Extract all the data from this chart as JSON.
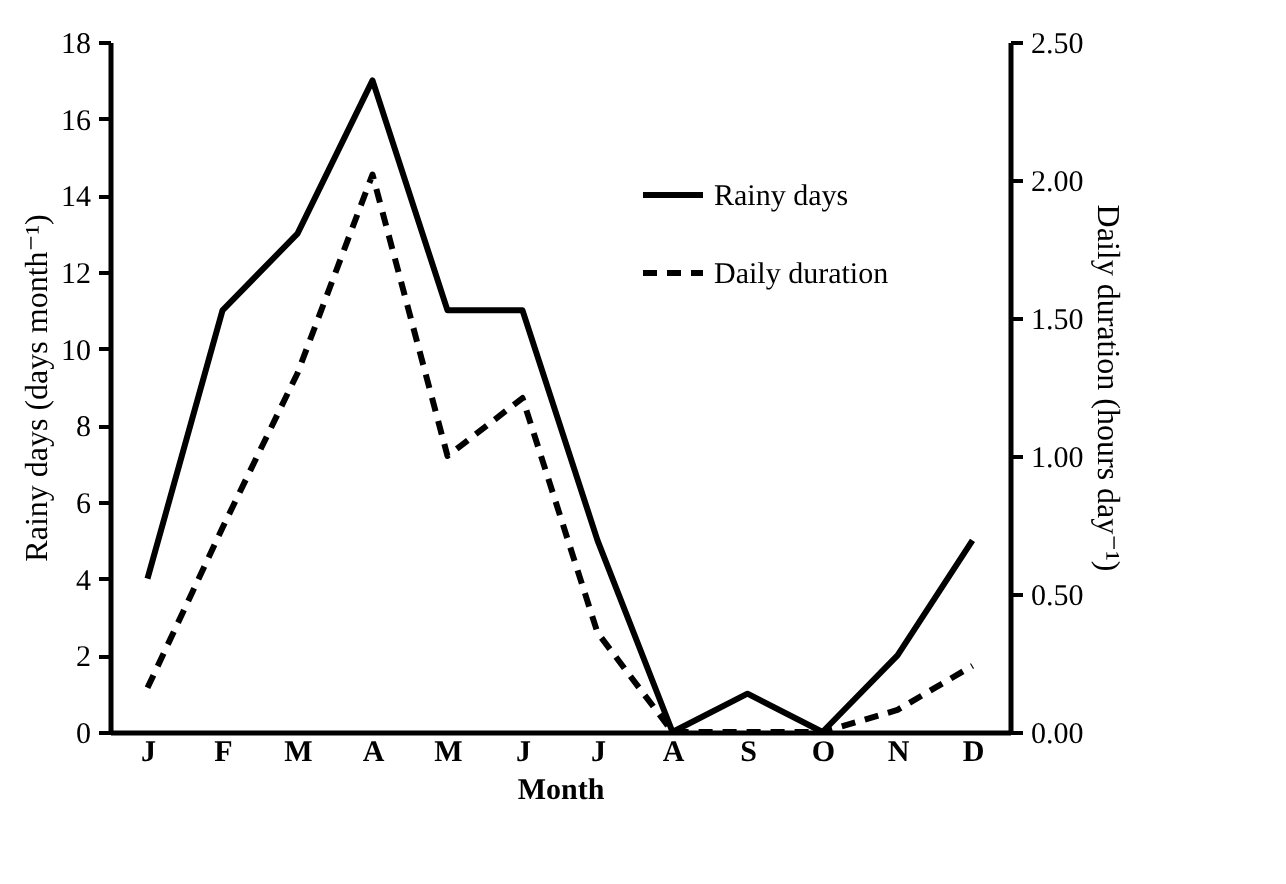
{
  "chart_data": {
    "type": "line",
    "xlabel": "Month",
    "ylabel": "Rainy days (days month⁻¹)",
    "y2label": "Daily duration (hours day⁻¹)",
    "categories": [
      "J",
      "F",
      "M",
      "A",
      "M",
      "J",
      "J",
      "A",
      "S",
      "O",
      "N",
      "D"
    ],
    "series": [
      {
        "name": "Rainy days",
        "color": "#000000",
        "line_style": "solid",
        "values": [
          4,
          11,
          13,
          17,
          11,
          11,
          5,
          0,
          1,
          0,
          2,
          5
        ]
      },
      {
        "name": "Daily duration",
        "color": "#000000",
        "line_style": "dashed",
        "axis": "y2",
        "values": [
          0.16,
          0.74,
          1.3,
          2.02,
          1.0,
          1.21,
          0.36,
          0,
          0,
          0,
          0.08,
          0.24
        ]
      }
    ],
    "ylim": [
      0,
      18
    ],
    "yticks": [
      0,
      2,
      4,
      6,
      8,
      10,
      12,
      14,
      16,
      18
    ],
    "y2lim": [
      0,
      2.5
    ],
    "y2ticks": [
      {
        "value": 0,
        "label": "0.00"
      },
      {
        "value": 0.5,
        "label": "0.50"
      },
      {
        "value": 1,
        "label": "1.00"
      },
      {
        "value": 1.5,
        "label": "1.50"
      },
      {
        "value": 2,
        "label": "2.00"
      },
      {
        "value": 2.5,
        "label": "2.50"
      }
    ],
    "grid": false,
    "legend": "top right"
  }
}
